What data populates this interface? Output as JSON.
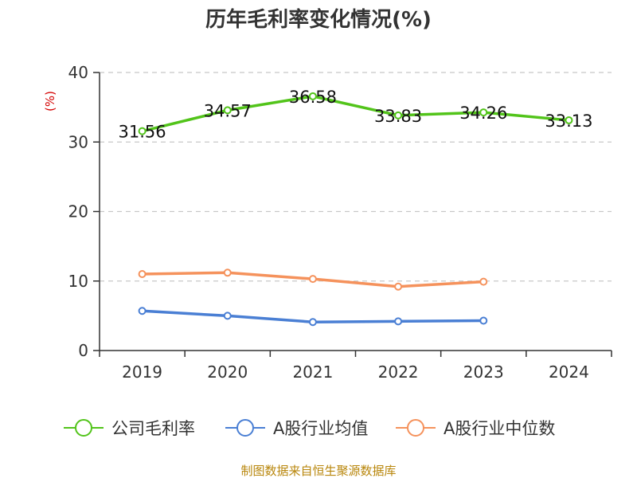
{
  "chart_data": {
    "type": "line",
    "title": "历年毛利率变化情况(%)",
    "ylabel": "(%)",
    "xlabel": "",
    "categories": [
      "2019",
      "2020",
      "2021",
      "2022",
      "2023",
      "2024"
    ],
    "ylim": [
      0,
      40
    ],
    "yticks": [
      0,
      10,
      20,
      30,
      40
    ],
    "grid": true,
    "legend_position": "bottom",
    "series": [
      {
        "name": "公司毛利率",
        "values": [
          31.56,
          34.57,
          36.58,
          33.83,
          34.26,
          33.13
        ],
        "color": "#52c41a",
        "show_labels": true,
        "labels": [
          "31.56",
          "34.57",
          "36.58",
          "33.83",
          "34.26",
          "33.13"
        ]
      },
      {
        "name": "A股行业均值",
        "values": [
          5.7,
          5.0,
          4.1,
          4.2,
          4.3,
          null
        ],
        "color": "#4a7fd4",
        "show_labels": false
      },
      {
        "name": "A股行业中位数",
        "values": [
          11.0,
          11.2,
          10.3,
          9.2,
          9.9,
          null
        ],
        "color": "#f5925c",
        "show_labels": false
      }
    ],
    "source": "制图数据来自恒生聚源数据库"
  }
}
